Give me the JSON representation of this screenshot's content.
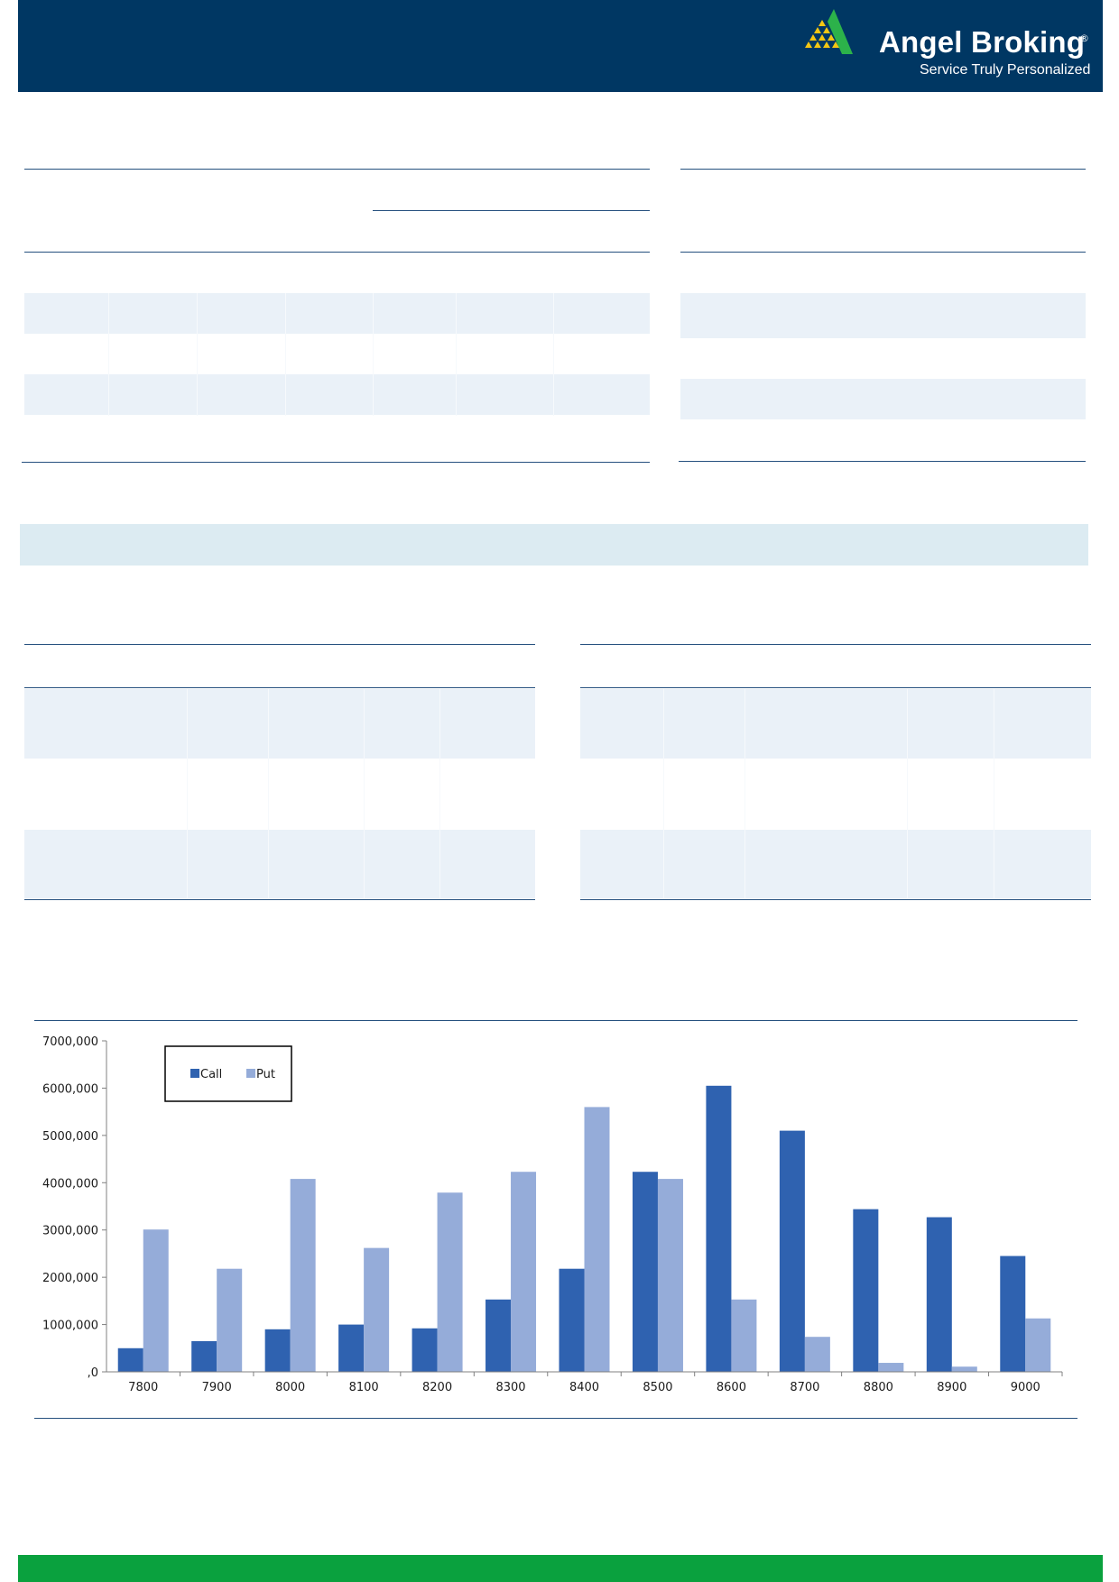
{
  "brand": {
    "name": "Angel Broking",
    "registered": "®",
    "tagline": "Service Truly Personalized",
    "header_color": "#003763",
    "footer_color": "#0aa13e",
    "logo_icon": "triangle-pyramid-logo"
  },
  "chart_data": {
    "type": "bar",
    "categories": [
      "7800",
      "7900",
      "8000",
      "8100",
      "8200",
      "8300",
      "8400",
      "8500",
      "8600",
      "8700",
      "8800",
      "8900",
      "9000"
    ],
    "series": [
      {
        "name": "Call",
        "color": "#2f62b0",
        "values": [
          500000,
          650000,
          900000,
          1000000,
          920000,
          1530000,
          2180000,
          4230000,
          6050000,
          5100000,
          3440000,
          3270000,
          2450000
        ]
      },
      {
        "name": "Put",
        "color": "#95acd9",
        "values": [
          3010000,
          2180000,
          4080000,
          2620000,
          3790000,
          4230000,
          5600000,
          4080000,
          1530000,
          740000,
          190000,
          110000,
          1130000
        ]
      }
    ],
    "yticks": [
      "7000,000",
      "6000,000",
      "5000,000",
      "4000,000",
      "3000,000",
      "2000,000",
      "1000,000",
      ",0"
    ],
    "ylim": [
      0,
      7000000
    ],
    "legend": "top-left",
    "grid": false
  }
}
